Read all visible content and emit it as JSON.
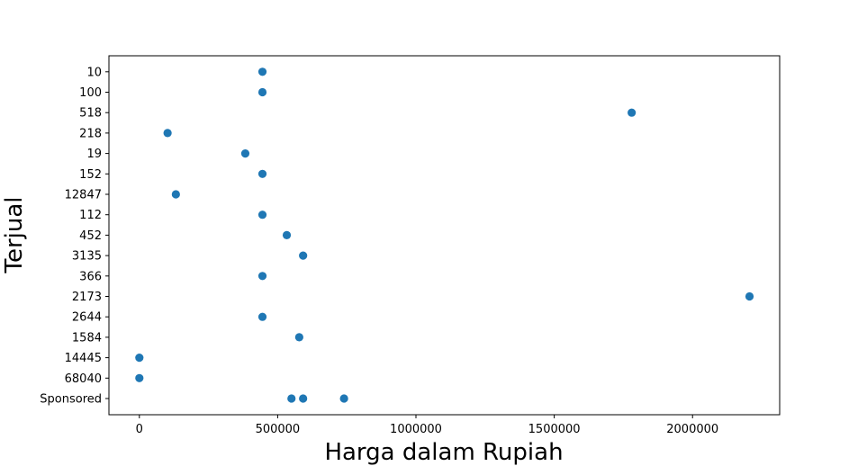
{
  "chart_data": {
    "type": "scatter",
    "title": "",
    "xlabel": "Harga dalam Rupiah",
    "ylabel": "Terjual",
    "xlim": [
      -110000,
      2315000
    ],
    "x_ticks": [
      0,
      500000,
      1000000,
      1500000,
      2000000
    ],
    "x_tick_labels": [
      "0",
      "500000",
      "1000000",
      "1500000",
      "2000000"
    ],
    "categories": [
      "Sponsored",
      "68040",
      "14445",
      "1584",
      "2644",
      "2173",
      "366",
      "3135",
      "452",
      "112",
      "12847",
      "152",
      "19",
      "218",
      "518",
      "100",
      "10"
    ],
    "points": [
      {
        "x": 445000,
        "y": "10"
      },
      {
        "x": 445000,
        "y": "100"
      },
      {
        "x": 1780000,
        "y": "518"
      },
      {
        "x": 102000,
        "y": "218"
      },
      {
        "x": 383000,
        "y": "19"
      },
      {
        "x": 445000,
        "y": "152"
      },
      {
        "x": 132000,
        "y": "12847"
      },
      {
        "x": 445000,
        "y": "112"
      },
      {
        "x": 533000,
        "y": "452"
      },
      {
        "x": 592000,
        "y": "3135"
      },
      {
        "x": 445000,
        "y": "366"
      },
      {
        "x": 2206000,
        "y": "2173"
      },
      {
        "x": 445000,
        "y": "2644"
      },
      {
        "x": 578000,
        "y": "1584"
      },
      {
        "x": 0,
        "y": "14445"
      },
      {
        "x": 0,
        "y": "68040"
      },
      {
        "x": 550000,
        "y": "Sponsored"
      },
      {
        "x": 592000,
        "y": "Sponsored"
      },
      {
        "x": 740000,
        "y": "Sponsored"
      }
    ],
    "marker_color": "#1f77b4",
    "grid": false,
    "legend": "none"
  }
}
